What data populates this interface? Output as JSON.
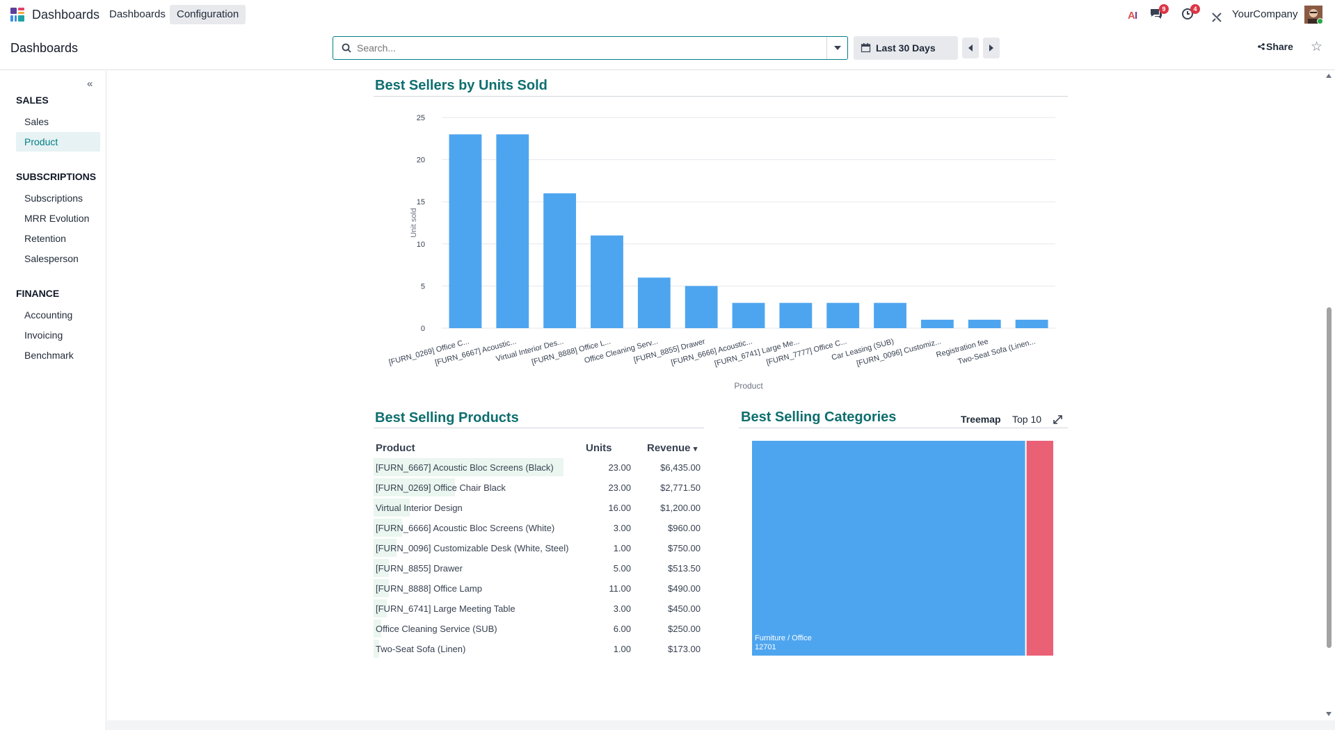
{
  "navbar": {
    "brand": "Dashboards",
    "menus": [
      "Dashboards",
      "Configuration"
    ],
    "messages_badge": "9",
    "activities_badge": "4",
    "company": "YourCompany"
  },
  "control_panel": {
    "title": "Dashboards",
    "search_placeholder": "Search...",
    "date_filter": "Last 30 Days",
    "share_label": "Share"
  },
  "sidebar": {
    "sections": [
      {
        "title": "SALES",
        "items": [
          "Sales",
          "Product"
        ]
      },
      {
        "title": "SUBSCRIPTIONS",
        "items": [
          "Subscriptions",
          "MRR Evolution",
          "Retention",
          "Salesperson"
        ]
      },
      {
        "title": "FINANCE",
        "items": [
          "Accounting",
          "Invoicing",
          "Benchmark"
        ]
      }
    ],
    "active_item": "Product"
  },
  "best_sellers_chart": {
    "heading": "Best Sellers by Units Sold"
  },
  "chart_data": [
    {
      "type": "bar",
      "title": "Best Sellers by Units Sold",
      "xlabel": "Product",
      "ylabel": "Unit sold",
      "ylim": [
        0,
        25
      ],
      "yticks": [
        0,
        5,
        10,
        15,
        20,
        25
      ],
      "grid": true,
      "color": "#4ea5ef",
      "categories": [
        "[FURN_0269] Office C...",
        "[FURN_6667] Acoustic...",
        "Virtual Interior Des...",
        "[FURN_8888] Office L...",
        "Office Cleaning Serv...",
        "[FURN_8855] Drawer",
        "[FURN_6666] Acoustic...",
        "[FURN_6741] Large Me...",
        "[FURN_7777] Office C...",
        "Car Leasing (SUB)",
        "[FURN_0096] Customiz...",
        "Registration fee",
        "Two-Seat Sofa (Linen..."
      ],
      "values": [
        23,
        23,
        16,
        11,
        6,
        5,
        3,
        3,
        3,
        3,
        1,
        1,
        1
      ]
    },
    {
      "type": "heatmap",
      "title": "Best Selling Categories",
      "categories": [
        "Furniture / Office",
        ""
      ],
      "values": [
        12701,
        1300
      ],
      "colors": [
        "#4ea5ef",
        "#ea6176"
      ]
    }
  ],
  "best_products": {
    "heading": "Best Selling Products",
    "columns": [
      "Product",
      "Units",
      "Revenue"
    ],
    "sort_indicator": "▾",
    "rows": [
      {
        "product": "[FURN_6667] Acoustic Bloc Screens (Black)",
        "units": "23.00",
        "revenue": "$6,435.00",
        "share": 1.0
      },
      {
        "product": "[FURN_0269] Office Chair Black",
        "units": "23.00",
        "revenue": "$2,771.50",
        "share": 0.43
      },
      {
        "product": "Virtual Interior Design",
        "units": "16.00",
        "revenue": "$1,200.00",
        "share": 0.19
      },
      {
        "product": "[FURN_6666] Acoustic Bloc Screens (White)",
        "units": "3.00",
        "revenue": "$960.00",
        "share": 0.15
      },
      {
        "product": "[FURN_0096] Customizable Desk (White, Steel)",
        "units": "1.00",
        "revenue": "$750.00",
        "share": 0.12
      },
      {
        "product": "[FURN_8855] Drawer",
        "units": "5.00",
        "revenue": "$513.50",
        "share": 0.08
      },
      {
        "product": "[FURN_8888] Office Lamp",
        "units": "11.00",
        "revenue": "$490.00",
        "share": 0.08
      },
      {
        "product": "[FURN_6741] Large Meeting Table",
        "units": "3.00",
        "revenue": "$450.00",
        "share": 0.07
      },
      {
        "product": "Office Cleaning Service (SUB)",
        "units": "6.00",
        "revenue": "$250.00",
        "share": 0.04
      },
      {
        "product": "Two-Seat Sofa (Linen)",
        "units": "1.00",
        "revenue": "$173.00",
        "share": 0.03
      }
    ]
  },
  "categories_panel": {
    "heading": "Best Selling Categories",
    "chart_type": "Treemap",
    "limit": "Top 10",
    "main_label": "Furniture / Office",
    "main_value": "12701"
  }
}
